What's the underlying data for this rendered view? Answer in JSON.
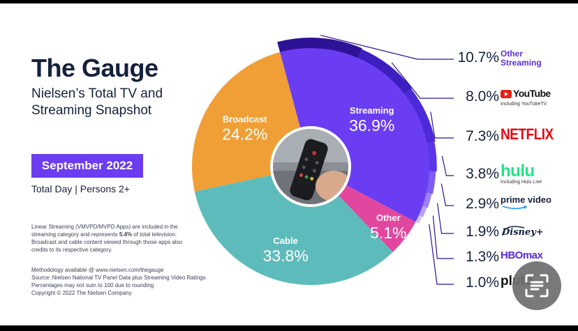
{
  "header": {
    "title": "The Gauge",
    "subtitle": "Nielsen’s Total TV and Streaming Snapshot",
    "date_badge": "September 2022",
    "audience": "Total Day | Persons 2+"
  },
  "footnote": {
    "part1": "Linear Streaming (VMVPD/MVPD Apps) are included in the streaming category and represents ",
    "highlight": "5.4%",
    "part2": " of total television. Broadcast and cable content viewed through those apps also credits to its respective category."
  },
  "methodology": [
    "Methodology available @ www.nielsen.com/thegauge",
    "Source: Nielsen National TV Panel Data plus Streaming Video Ratings",
    "Percentages may not sum to 100 due to rounding",
    "Copyright © 2022 The Nielsen Company"
  ],
  "colors": {
    "streaming": "#6a3df2",
    "broadcast": "#f09f36",
    "cable": "#5dbcbb",
    "other": "#e2479f",
    "navy": "#14213d",
    "badge": "#6b3cf0",
    "streaming_ring": [
      "#2e1296",
      "#3d1fc0",
      "#4c2ad8",
      "#5a36e6",
      "#7f5cf0",
      "#9c82f4",
      "#b6a4f7",
      "#cfc4fa"
    ]
  },
  "chart_data": {
    "type": "pie",
    "slices": [
      {
        "label": "Streaming",
        "value": 36.9,
        "display": "36.9%"
      },
      {
        "label": "Other",
        "value": 5.1,
        "display": "5.1%"
      },
      {
        "label": "Cable",
        "value": 33.8,
        "display": "33.8%"
      },
      {
        "label": "Broadcast",
        "value": 24.2,
        "display": "24.2%"
      }
    ],
    "streaming_breakdown": [
      {
        "name": "Other Streaming",
        "value": 10.7,
        "display": "10.7%",
        "sublabel": "",
        "icon": "other-streaming-text"
      },
      {
        "name": "YouTube",
        "value": 8.0,
        "display": "8.0%",
        "sublabel": "Including YouTubeTV",
        "icon": "youtube-logo"
      },
      {
        "name": "NETFLIX",
        "value": 7.3,
        "display": "7.3%",
        "sublabel": "",
        "icon": "netflix-logo"
      },
      {
        "name": "hulu",
        "value": 3.8,
        "display": "3.8%",
        "sublabel": "Including Hulu Live",
        "icon": "hulu-logo"
      },
      {
        "name": "prime video",
        "value": 2.9,
        "display": "2.9%",
        "sublabel": "",
        "icon": "prime-video-logo"
      },
      {
        "name": "Disney+",
        "value": 1.9,
        "display": "1.9%",
        "sublabel": "",
        "icon": "disney-plus-logo"
      },
      {
        "name": "HBOmax",
        "value": 1.3,
        "display": "1.3%",
        "sublabel": "",
        "icon": "hbo-max-logo"
      },
      {
        "name": "pluto",
        "value": 1.0,
        "display": "1.0%",
        "sublabel": "",
        "icon": "pluto-logo"
      }
    ]
  },
  "overlay": {
    "scan_icon": "scan-text-icon"
  }
}
